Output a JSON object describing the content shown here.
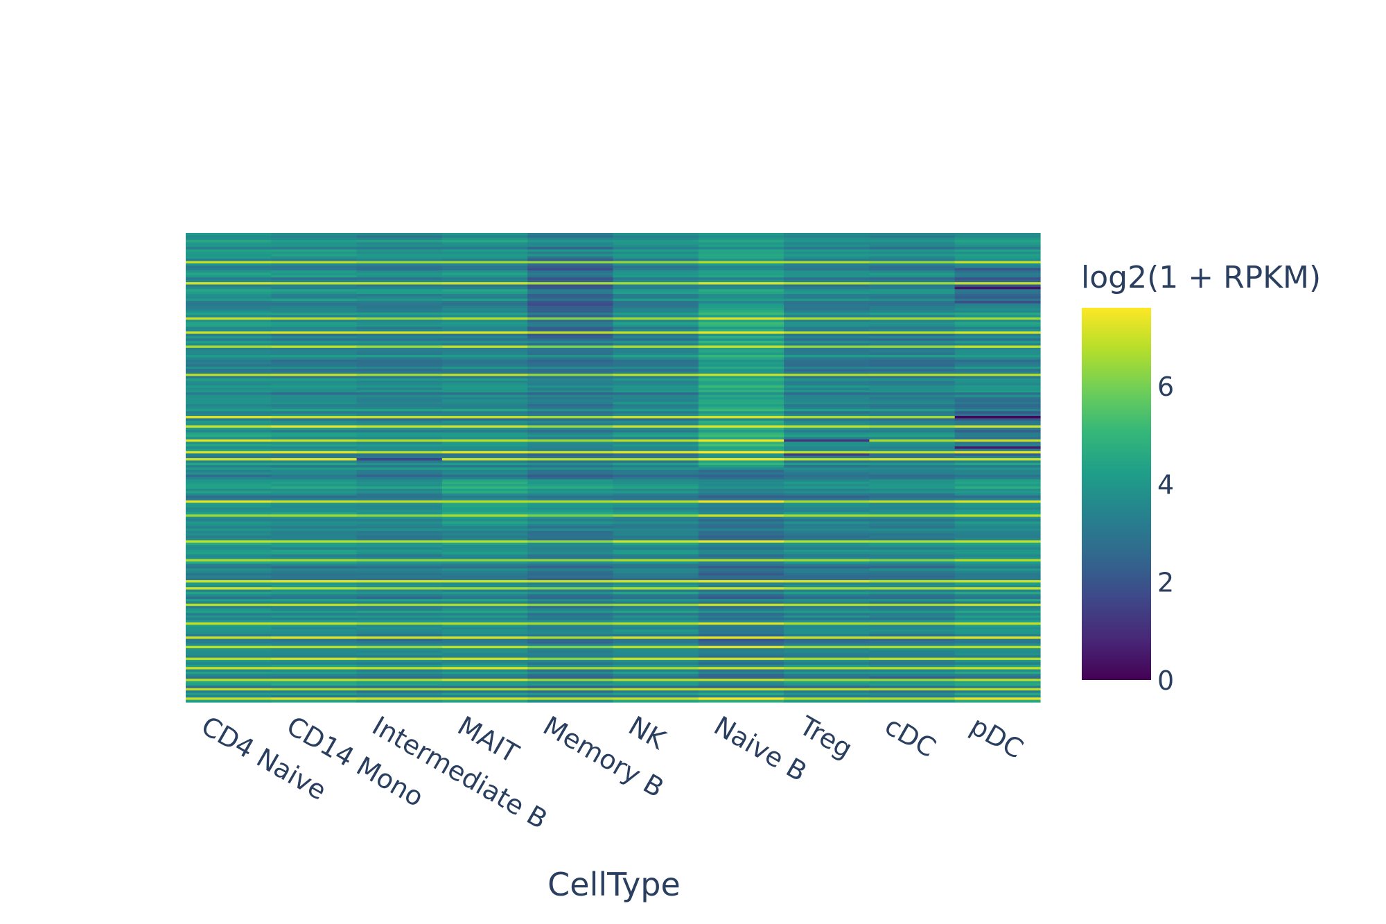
{
  "chart_data": {
    "type": "heatmap",
    "title": "",
    "xlabel": "CellType",
    "ylabel": "",
    "categories": [
      "CD4 Naive",
      "CD14 Mono",
      "Intermediate B",
      "MAIT",
      "Memory B",
      "NK",
      "Naive B",
      "Treg",
      "cDC",
      "pDC"
    ],
    "row_count": 200,
    "value_range": [
      0,
      7.6
    ],
    "colorscale": "Viridis",
    "colorbar": {
      "title": "log2(1 + RPKM)",
      "ticks": [
        0,
        2,
        4,
        6
      ],
      "tick_labels": [
        "0",
        "2",
        "4",
        "6"
      ]
    },
    "column_offsets": [
      0.0,
      -0.1,
      -0.25,
      -0.1,
      -0.55,
      -0.2,
      0.2,
      -0.3,
      -0.35,
      0.0
    ],
    "column_band_shifts": [
      {
        "column": "Memory B",
        "rows": [
          10,
          45
        ],
        "shift": -0.7
      },
      {
        "column": "MAIT",
        "rows": [
          105,
          125
        ],
        "shift": 0.5
      },
      {
        "column": "Memory B",
        "rows": [
          105,
          125
        ],
        "shift": 0.5
      },
      {
        "column": "Naive B",
        "rows": [
          30,
          100
        ],
        "shift": 0.6
      },
      {
        "column": "Naive B",
        "rows": [
          100,
          195
        ],
        "shift": -0.9
      },
      {
        "column": "pDC",
        "rows": [
          15,
          30
        ],
        "shift": -1.2
      },
      {
        "column": "pDC",
        "rows": [
          70,
          95
        ],
        "shift": -1.0
      }
    ],
    "bright_rows": [
      12,
      21,
      36,
      42,
      48,
      60,
      78,
      82,
      88,
      93,
      96,
      114,
      120,
      131,
      139,
      148,
      151,
      158,
      166,
      172,
      176,
      181,
      185,
      190,
      194,
      198
    ],
    "dark_cells": [
      {
        "column": "pDC",
        "row": 23,
        "value": 0.4
      },
      {
        "column": "pDC",
        "row": 78,
        "value": 0.1
      },
      {
        "column": "pDC",
        "row": 91,
        "value": 0.5
      },
      {
        "column": "Treg",
        "row": 88,
        "value": 1.2
      },
      {
        "column": "Treg",
        "row": 94,
        "value": 1.3
      },
      {
        "column": "Intermediate B",
        "row": 96,
        "value": 1.6
      }
    ]
  }
}
